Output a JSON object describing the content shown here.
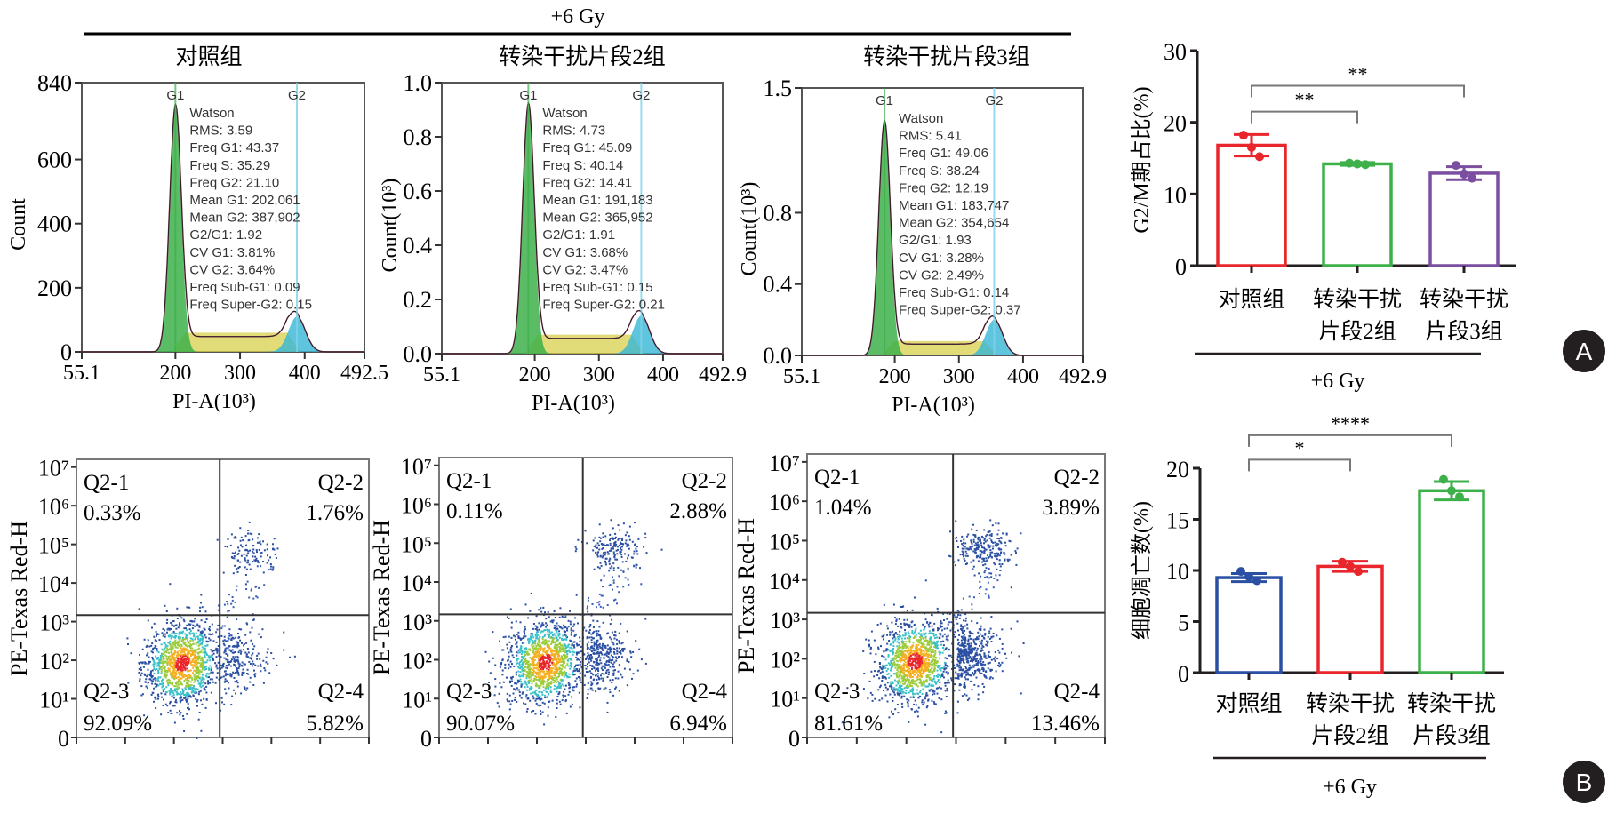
{
  "header": {
    "dose_label": "+6 Gy"
  },
  "panel_labels": {
    "a": "A",
    "b": "B"
  },
  "chart_data": [
    {
      "type": "area",
      "id": "hist-control",
      "title": "对照组",
      "xlabel": "PI-A(10³)",
      "ylabel": "Count",
      "xlim": [
        55.1,
        492.5
      ],
      "ylim": [
        0,
        840
      ],
      "xticks": [
        "55.1",
        "200",
        "300",
        "400",
        "492.5"
      ],
      "xtick_values": [
        55.1,
        200,
        300,
        400,
        492.5
      ],
      "yticks": [
        "0",
        "200",
        "400",
        "600",
        "840"
      ],
      "ytick_values": [
        0,
        200,
        400,
        600,
        840
      ],
      "peak_labels": [
        "G1",
        "G2"
      ],
      "g1_peak_x": 200,
      "g2_peak_x": 388,
      "g1_peak_y": 760,
      "g2_peak_y": 110,
      "s_level": 60,
      "stats": [
        "Watson",
        "RMS: 3.59",
        "Freq G1: 43.37",
        "Freq S: 35.29",
        "Freq G2: 21.10",
        "Mean G1: 202,061",
        "Mean G2: 387,902",
        "G2/G1: 1.92",
        "CV G1: 3.81%",
        "CV G2: 3.64%",
        "Freq Sub-G1: 0.09",
        "Freq Super-G2: 0.15"
      ]
    },
    {
      "type": "area",
      "id": "hist-si2",
      "title": "转染干扰片段2组",
      "xlabel": "PI-A(10³)",
      "ylabel": "Count(10³)",
      "xlim": [
        55.1,
        492.9
      ],
      "ylim": [
        0,
        1.0
      ],
      "xticks": [
        "55.1",
        "200",
        "300",
        "400",
        "492.9"
      ],
      "xtick_values": [
        55.1,
        200,
        300,
        400,
        492.9
      ],
      "yticks": [
        "0.0",
        "0.2",
        "0.4",
        "0.6",
        "0.8",
        "1.0"
      ],
      "ytick_values": [
        0,
        0.2,
        0.4,
        0.6,
        0.8,
        1.0
      ],
      "peak_labels": [
        "G1",
        "G2"
      ],
      "g1_peak_x": 190,
      "g2_peak_x": 366,
      "g1_peak_y": 0.91,
      "g2_peak_y": 0.14,
      "s_level": 0.07,
      "stats": [
        "Watson",
        "RMS: 4.73",
        "Freq G1: 45.09",
        "Freq S: 40.14",
        "Freq G2: 14.41",
        "Mean G1: 191,183",
        "Mean G2: 365,952",
        "G2/G1: 1.91",
        "CV G1: 3.68%",
        "CV G2: 3.47%",
        "Freq Sub-G1: 0.15",
        "Freq Super-G2: 0.21"
      ]
    },
    {
      "type": "area",
      "id": "hist-si3",
      "title": "转染干扰片段3组",
      "xlabel": "PI-A(10³)",
      "ylabel": "Count(10³)",
      "xlim": [
        55.1,
        492.9
      ],
      "ylim": [
        0,
        1.5
      ],
      "xticks": [
        "55.1",
        "200",
        "300",
        "400",
        "492.9"
      ],
      "xtick_values": [
        55.1,
        200,
        300,
        400,
        492.9
      ],
      "yticks": [
        "0.0",
        "0.4",
        "0.8",
        "1.5"
      ],
      "ytick_values": [
        0,
        0.4,
        0.8,
        1.5
      ],
      "peak_labels": [
        "G1",
        "G2"
      ],
      "g1_peak_x": 184,
      "g2_peak_x": 355,
      "g1_peak_y": 1.3,
      "g2_peak_y": 0.2,
      "s_level": 0.08,
      "stats": [
        "Watson",
        "RMS: 5.41",
        "Freq G1: 49.06",
        "Freq S: 38.24",
        "Freq G2: 12.19",
        "Mean G1: 183,747",
        "Mean G2: 354,654",
        "G2/G1: 1.93",
        "CV G1: 3.28%",
        "CV G2: 2.49%",
        "Freq Sub-G1: 0.14",
        "Freq Super-G2: 0.37"
      ]
    },
    {
      "type": "bar",
      "id": "bar-g2m",
      "title": "",
      "ylabel": "G2/M期占比(%)",
      "xlabel": "+6 Gy",
      "categories": [
        "对照组",
        "转染干扰片段2组",
        "转染干扰片段3组"
      ],
      "category_lines": [
        [
          "对照组"
        ],
        [
          "转染干扰",
          "片段2组"
        ],
        [
          "转染干扰",
          "片段3组"
        ]
      ],
      "values": [
        16.8,
        14.2,
        12.9
      ],
      "errors": [
        1.5,
        0.2,
        0.9
      ],
      "points": [
        [
          18.2,
          16.5,
          15.2
        ],
        [
          14.3,
          14.2,
          14.1
        ],
        [
          14.0,
          12.8,
          12.2
        ]
      ],
      "colors": [
        "#e8262b",
        "#3db04a",
        "#7b4ea0"
      ],
      "ylim": [
        0,
        30
      ],
      "yticks": [
        0,
        10,
        20,
        30
      ],
      "significance": [
        {
          "from": 0,
          "to": 1,
          "label": "**"
        },
        {
          "from": 0,
          "to": 2,
          "label": "**"
        }
      ]
    },
    {
      "type": "scatter",
      "id": "flow-control",
      "ylabel": "PE-Texas Red-H",
      "yticks": [
        "0",
        "10¹",
        "10²",
        "10³",
        "10⁴",
        "10⁵",
        "10⁶",
        "10⁷"
      ],
      "quadrants": [
        {
          "name": "Q2-1",
          "value": "0.33%"
        },
        {
          "name": "Q2-2",
          "value": "1.76%"
        },
        {
          "name": "Q2-3",
          "value": "92.09%"
        },
        {
          "name": "Q2-4",
          "value": "5.82%"
        }
      ]
    },
    {
      "type": "scatter",
      "id": "flow-si2",
      "ylabel": "PE-Texas Red-H",
      "yticks": [
        "0",
        "10¹",
        "10²",
        "10³",
        "10⁴",
        "10⁵",
        "10⁶",
        "10⁷"
      ],
      "quadrants": [
        {
          "name": "Q2-1",
          "value": "0.11%"
        },
        {
          "name": "Q2-2",
          "value": "2.88%"
        },
        {
          "name": "Q2-3",
          "value": "90.07%"
        },
        {
          "name": "Q2-4",
          "value": "6.94%"
        }
      ]
    },
    {
      "type": "scatter",
      "id": "flow-si3",
      "ylabel": "PE-Texas Red-H",
      "yticks": [
        "0",
        "10¹",
        "10²",
        "10³",
        "10⁴",
        "10⁵",
        "10⁶",
        "10⁷"
      ],
      "quadrants": [
        {
          "name": "Q2-1",
          "value": "1.04%"
        },
        {
          "name": "Q2-2",
          "value": "3.89%"
        },
        {
          "name": "Q2-3",
          "value": "81.61%"
        },
        {
          "name": "Q2-4",
          "value": "13.46%"
        }
      ]
    },
    {
      "type": "bar",
      "id": "bar-apoptosis",
      "title": "",
      "ylabel": "细胞凋亡数(%)",
      "xlabel": "+6 Gy",
      "categories": [
        "对照组",
        "转染干扰片段2组",
        "转染干扰片段3组"
      ],
      "category_lines": [
        [
          "对照组"
        ],
        [
          "转染干扰",
          "片段2组"
        ],
        [
          "转染干扰",
          "片段3组"
        ]
      ],
      "values": [
        9.3,
        10.4,
        17.8
      ],
      "errors": [
        0.4,
        0.5,
        0.9
      ],
      "points": [
        [
          9.9,
          9.4,
          9.0
        ],
        [
          10.8,
          10.4,
          9.9
        ],
        [
          18.9,
          17.8,
          17.2
        ]
      ],
      "colors": [
        "#2a4fa3",
        "#e8262b",
        "#3db04a"
      ],
      "ylim": [
        0,
        20
      ],
      "yticks": [
        0,
        5,
        10,
        15,
        20
      ],
      "significance": [
        {
          "from": 0,
          "to": 1,
          "label": "*"
        },
        {
          "from": 0,
          "to": 2,
          "label": "****"
        }
      ]
    }
  ]
}
